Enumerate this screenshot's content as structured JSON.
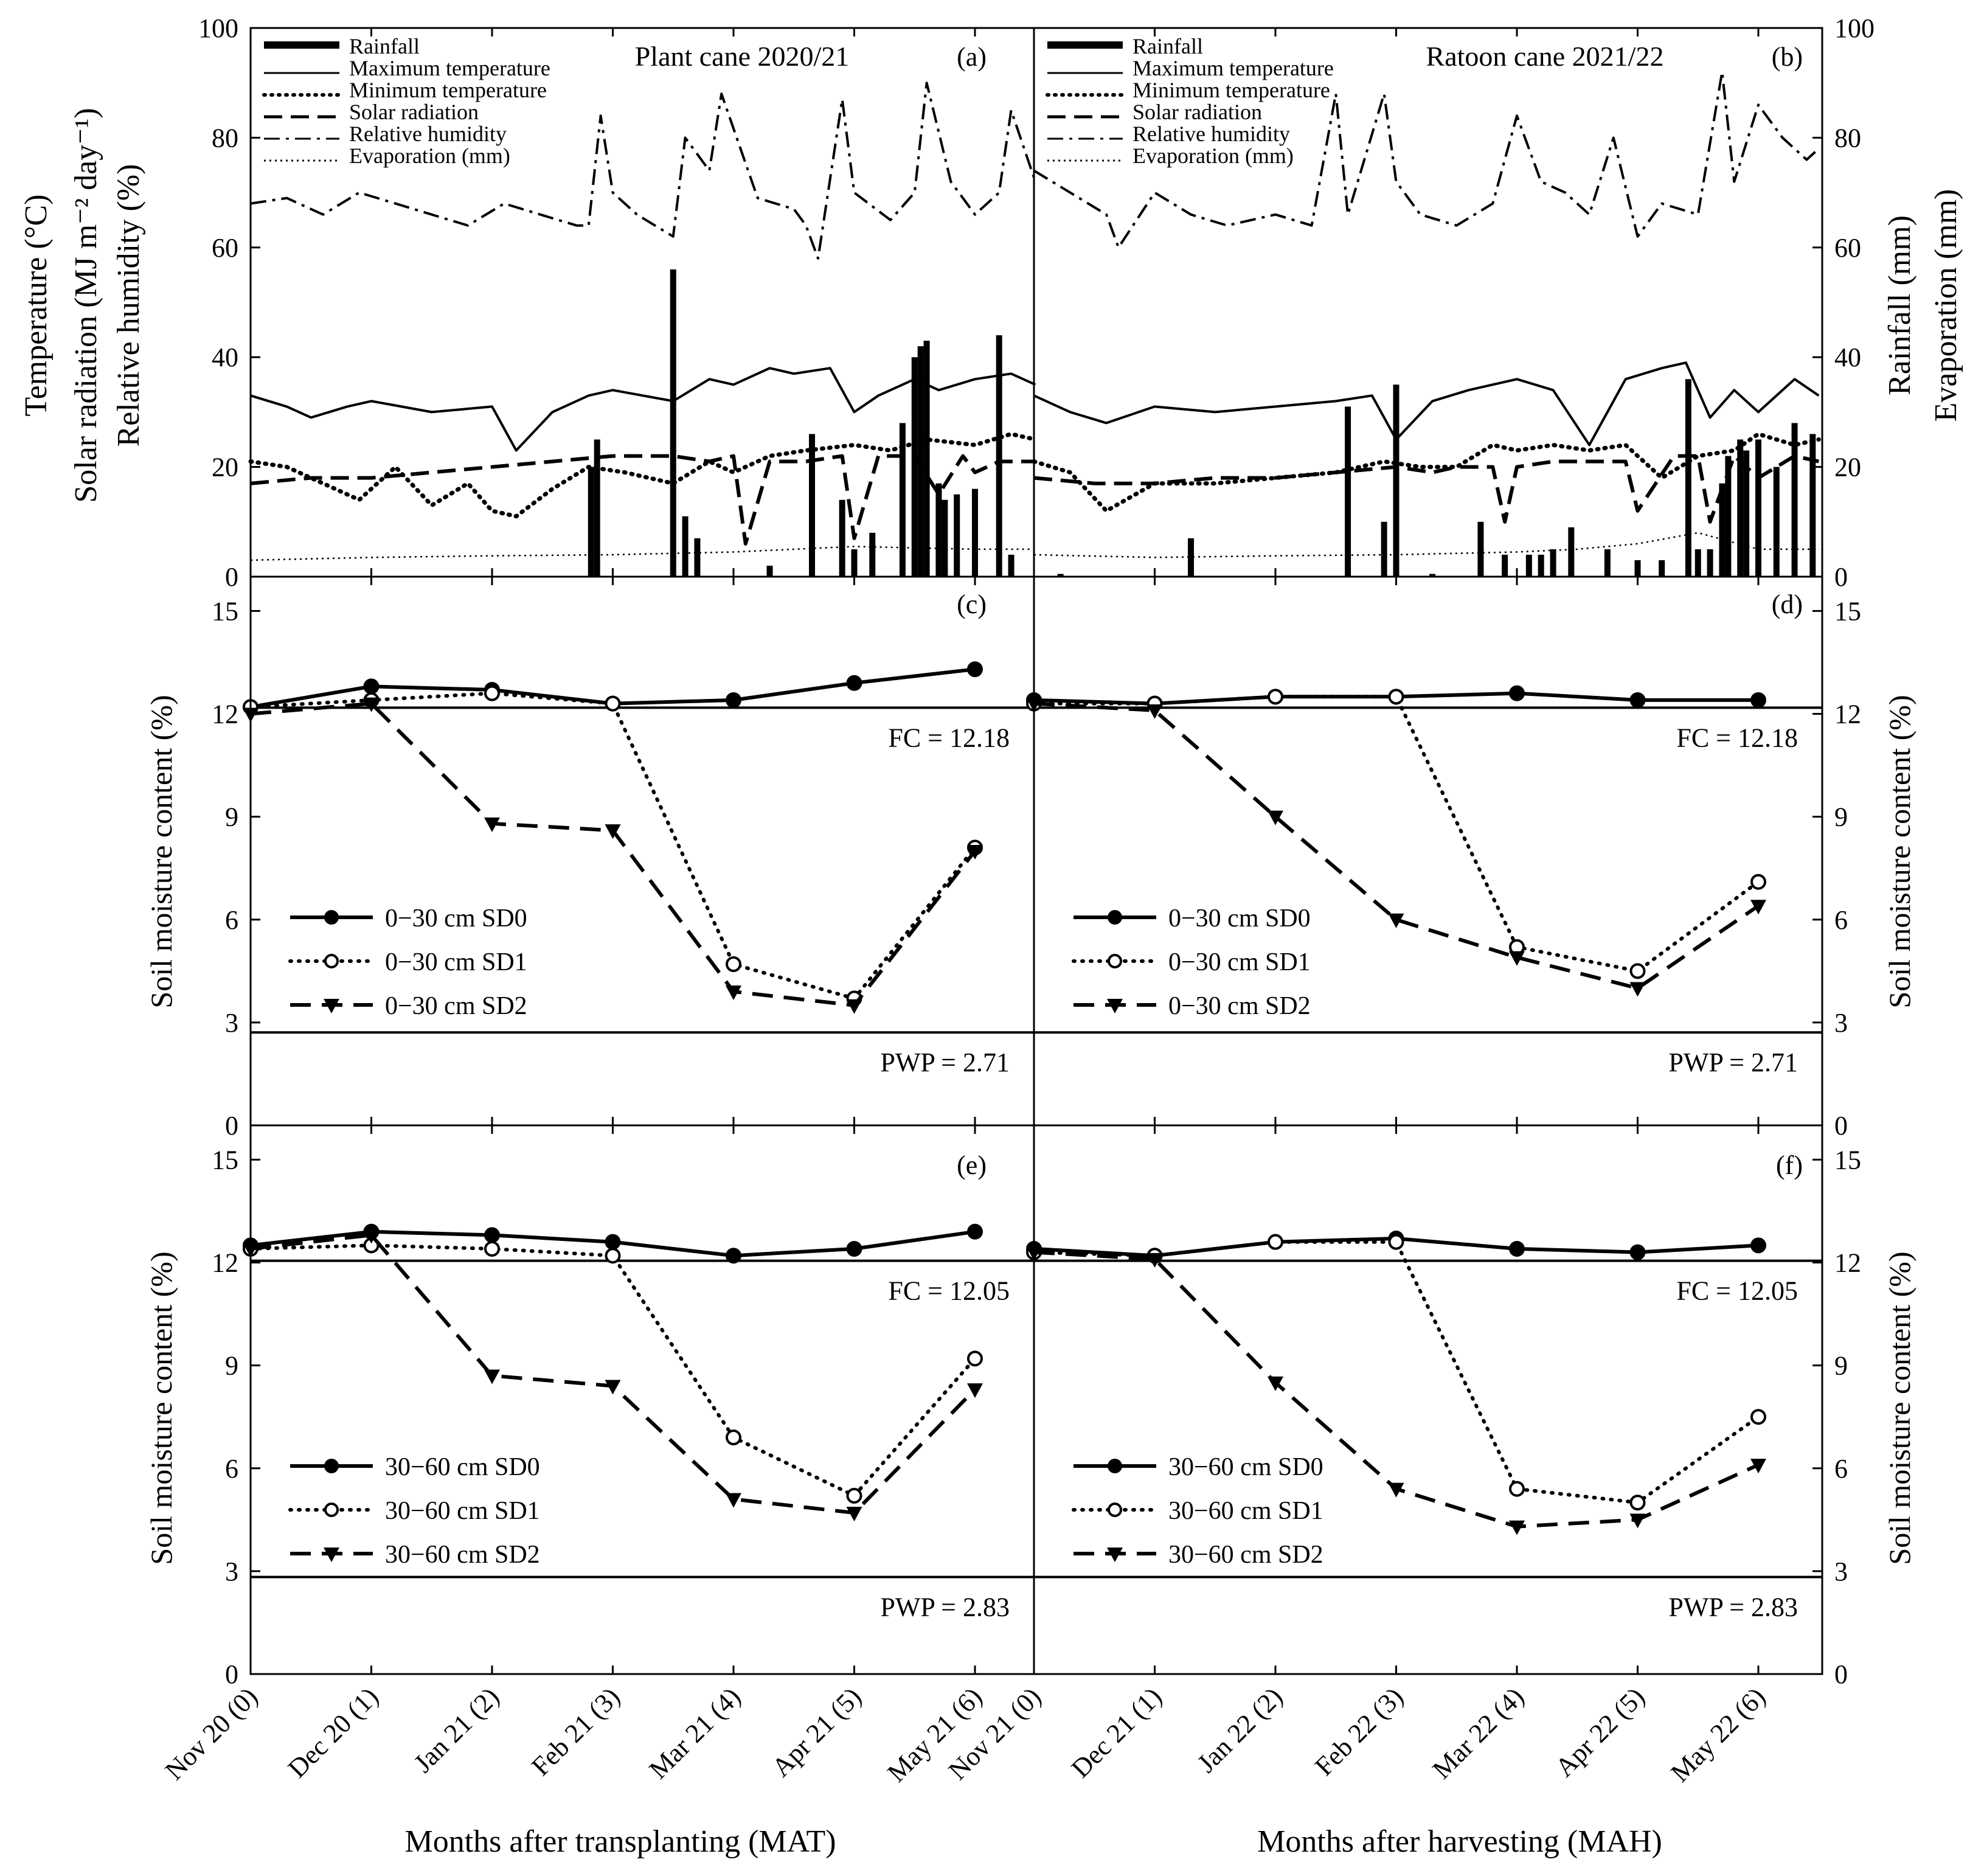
{
  "chart_data": [
    {
      "panel": "a",
      "type": "line",
      "title": "Plant cane 2020/21",
      "panel_label": "(a)",
      "ylabel_left": [
        "Temperature (°C)",
        "Solar radiation (MJ m⁻² day⁻¹)",
        "Relative humidity (%)"
      ],
      "ylim": [
        0,
        100
      ],
      "yticks": [
        "0",
        "20",
        "40",
        "60",
        "80",
        "100"
      ],
      "x_months": 6,
      "legend": [
        "Rainfall",
        "Maximum temperature",
        "Minimum temperature",
        "Solar radiation",
        "Relative humidity",
        "Evaporation (mm)"
      ],
      "series": [
        {
          "name": "Relative humidity",
          "style": "dashdot",
          "x": [
            0,
            0.3,
            0.6,
            0.9,
            1.2,
            1.5,
            1.8,
            2.1,
            2.4,
            2.7,
            2.8,
            2.9,
            3.0,
            3.2,
            3.5,
            3.6,
            3.8,
            3.9,
            4.2,
            4.5,
            4.6,
            4.7,
            4.9,
            5.0,
            5.3,
            5.5,
            5.6,
            5.8,
            6.0,
            6.2,
            6.3,
            6.5
          ],
          "values": [
            68,
            69,
            66,
            70,
            68,
            66,
            64,
            68,
            66,
            64,
            64,
            84,
            70,
            66,
            62,
            80,
            74,
            88,
            69,
            67,
            64,
            58,
            87,
            70,
            65,
            70,
            90,
            72,
            66,
            70,
            85,
            72
          ]
        },
        {
          "name": "Maximum temperature",
          "style": "solid",
          "x": [
            0,
            0.3,
            0.5,
            0.8,
            1.0,
            1.5,
            2.0,
            2.2,
            2.5,
            2.8,
            3.0,
            3.5,
            3.8,
            4.0,
            4.3,
            4.5,
            4.8,
            5.0,
            5.2,
            5.5,
            5.7,
            6.0,
            6.3,
            6.5
          ],
          "values": [
            33,
            31,
            29,
            31,
            32,
            30,
            31,
            23,
            30,
            33,
            34,
            32,
            36,
            35,
            38,
            37,
            38,
            30,
            33,
            36,
            34,
            36,
            37,
            35
          ]
        },
        {
          "name": "Minimum temperature",
          "style": "dotted",
          "x": [
            0,
            0.3,
            0.6,
            0.9,
            1.2,
            1.5,
            1.8,
            2.0,
            2.2,
            2.5,
            2.8,
            3.1,
            3.5,
            3.8,
            4.0,
            4.3,
            4.6,
            5.0,
            5.3,
            5.6,
            6.0,
            6.3,
            6.5
          ],
          "values": [
            21,
            20,
            17,
            14,
            20,
            13,
            17,
            12,
            11,
            16,
            20,
            19,
            17,
            21,
            19,
            22,
            23,
            24,
            23,
            25,
            24,
            26,
            25
          ]
        },
        {
          "name": "Solar radiation",
          "style": "dashed",
          "x": [
            0,
            0.5,
            1.0,
            1.5,
            2.0,
            2.5,
            3.0,
            3.5,
            3.8,
            4.0,
            4.1,
            4.3,
            4.6,
            4.9,
            5.0,
            5.2,
            5.5,
            5.7,
            5.9,
            6.0,
            6.2,
            6.5
          ],
          "values": [
            17,
            18,
            18,
            19,
            20,
            21,
            22,
            22,
            21,
            22,
            6,
            21,
            21,
            22,
            7,
            22,
            22,
            15,
            22,
            19,
            21,
            21
          ]
        },
        {
          "name": "Evaporation (mm)",
          "style": "dotted-thin",
          "x": [
            0,
            1,
            2,
            3,
            4,
            4.5,
            5,
            6,
            6.5
          ],
          "values": [
            3,
            3.5,
            3.8,
            4,
            4.5,
            5,
            5.5,
            5,
            5
          ]
        },
        {
          "name": "Rainfall",
          "style": "bar",
          "x": [
            2.82,
            2.87,
            3.5,
            3.6,
            3.7,
            4.3,
            4.65,
            4.9,
            5.0,
            5.15,
            5.4,
            5.5,
            5.55,
            5.6,
            5.7,
            5.75,
            5.85,
            6.0,
            6.2,
            6.3
          ],
          "values": [
            20,
            25,
            56,
            11,
            7,
            2,
            26,
            14,
            5,
            8,
            28,
            40,
            42,
            43,
            17,
            14,
            15,
            16,
            44,
            4
          ]
        }
      ]
    },
    {
      "panel": "b",
      "type": "line",
      "title": "Ratoon cane 2021/22",
      "panel_label": "(b)",
      "ylabel_right": [
        "Rainfall (mm)",
        "Evaporation (mm)"
      ],
      "ylim": [
        0,
        100
      ],
      "yticks": [
        "0",
        "20",
        "40",
        "60",
        "80",
        "100"
      ],
      "x_months": 6,
      "legend": [
        "Rainfall",
        "Maximum temperature",
        "Minimum temperature",
        "Solar radiation",
        "Relative humidity",
        "Evaporation (mm)"
      ],
      "series": [
        {
          "name": "Relative humidity",
          "style": "dashdot",
          "x": [
            0,
            0.3,
            0.6,
            0.7,
            1.0,
            1.3,
            1.6,
            2.0,
            2.3,
            2.5,
            2.6,
            2.9,
            3.0,
            3.2,
            3.5,
            3.8,
            4.0,
            4.2,
            4.4,
            4.6,
            4.8,
            5.0,
            5.2,
            5.5,
            5.7,
            5.8,
            6.0,
            6.2,
            6.4,
            6.5
          ],
          "values": [
            74,
            70,
            66,
            60,
            70,
            66,
            64,
            66,
            64,
            88,
            66,
            88,
            72,
            66,
            64,
            68,
            84,
            72,
            70,
            66,
            80,
            62,
            68,
            66,
            92,
            72,
            86,
            80,
            76,
            78
          ]
        },
        {
          "name": "Maximum temperature",
          "style": "solid",
          "x": [
            0,
            0.3,
            0.6,
            1.0,
            1.5,
            2.0,
            2.5,
            2.8,
            3.0,
            3.3,
            3.6,
            4.0,
            4.3,
            4.6,
            4.9,
            5.2,
            5.4,
            5.6,
            5.8,
            6.0,
            6.3,
            6.5
          ],
          "values": [
            33,
            30,
            28,
            31,
            30,
            31,
            32,
            33,
            25,
            32,
            34,
            36,
            34,
            24,
            36,
            38,
            39,
            29,
            34,
            30,
            36,
            33
          ]
        },
        {
          "name": "Minimum temperature",
          "style": "dotted",
          "x": [
            0,
            0.3,
            0.6,
            1.0,
            1.5,
            2.0,
            2.5,
            2.9,
            3.2,
            3.5,
            3.8,
            4.0,
            4.3,
            4.6,
            4.9,
            5.2,
            5.5,
            5.8,
            6.0,
            6.3,
            6.5
          ],
          "values": [
            21,
            19,
            12,
            17,
            17,
            18,
            19,
            21,
            20,
            20,
            24,
            23,
            24,
            23,
            24,
            18,
            22,
            23,
            26,
            24,
            25
          ]
        },
        {
          "name": "Solar radiation",
          "style": "dashed",
          "x": [
            0,
            0.5,
            1.0,
            1.5,
            2.0,
            2.5,
            3.0,
            3.3,
            3.5,
            3.8,
            3.9,
            4.0,
            4.3,
            4.6,
            4.9,
            5.0,
            5.3,
            5.5,
            5.6,
            5.8,
            6.0,
            6.3,
            6.5
          ],
          "values": [
            18,
            17,
            17,
            18,
            18,
            19,
            20,
            19,
            20,
            20,
            10,
            20,
            21,
            21,
            21,
            12,
            22,
            22,
            10,
            22,
            18,
            22,
            21
          ]
        },
        {
          "name": "Evaporation (mm)",
          "style": "dotted-thin",
          "x": [
            0,
            1,
            2,
            3,
            4,
            4.5,
            5,
            5.5,
            6,
            6.5
          ],
          "values": [
            4,
            3.5,
            3.8,
            4,
            4.5,
            5,
            6,
            8,
            5,
            5
          ]
        },
        {
          "name": "Rainfall",
          "style": "bar",
          "x": [
            0.22,
            1.3,
            2.6,
            2.9,
            3.0,
            3.3,
            3.7,
            3.9,
            4.1,
            4.2,
            4.3,
            4.45,
            4.75,
            5.0,
            5.2,
            5.42,
            5.5,
            5.6,
            5.7,
            5.75,
            5.85,
            5.9,
            6.0,
            6.15,
            6.3,
            6.45
          ],
          "values": [
            0.5,
            7,
            31,
            10,
            35,
            0.5,
            10,
            4,
            4,
            4,
            5,
            9,
            5,
            3,
            3,
            36,
            5,
            5,
            17,
            22,
            25,
            23,
            25,
            20,
            28,
            26
          ]
        }
      ]
    },
    {
      "panel": "c",
      "type": "line",
      "panel_label": "(c)",
      "ylabel_left": "Soil moisture content (%)",
      "ylim": [
        0,
        16
      ],
      "yticks": [
        "0",
        "3",
        "6",
        "9",
        "12",
        "15"
      ],
      "reference_lines": [
        {
          "label": "FC = 12.18",
          "value": 12.18
        },
        {
          "label": "PWP = 2.71",
          "value": 2.71
        }
      ],
      "series": [
        {
          "name": "0−30 cm SD0",
          "style": "solid",
          "marker": "filled-circle",
          "x": [
            0,
            1,
            2,
            3,
            4,
            5,
            6
          ],
          "values": [
            12.2,
            12.8,
            12.7,
            12.3,
            12.4,
            12.9,
            13.3
          ]
        },
        {
          "name": "0−30 cm SD1",
          "style": "dotted",
          "marker": "open-circle",
          "x": [
            0,
            1,
            2,
            3,
            4,
            5,
            6
          ],
          "values": [
            12.2,
            12.4,
            12.6,
            12.3,
            4.7,
            3.7,
            8.1
          ]
        },
        {
          "name": "0−30 cm SD2",
          "style": "dashed",
          "marker": "triangle-down",
          "x": [
            0,
            1,
            2,
            3,
            4,
            5,
            6
          ],
          "values": [
            12.0,
            12.3,
            8.8,
            8.6,
            3.9,
            3.5,
            8.0
          ]
        }
      ]
    },
    {
      "panel": "d",
      "type": "line",
      "panel_label": "(d)",
      "ylabel_right": "Soil moisture content (%)",
      "ylim": [
        0,
        16
      ],
      "yticks": [
        "0",
        "3",
        "6",
        "9",
        "12",
        "15"
      ],
      "reference_lines": [
        {
          "label": "FC = 12.18",
          "value": 12.18
        },
        {
          "label": "PWP = 2.71",
          "value": 2.71
        }
      ],
      "series": [
        {
          "name": "0−30 cm SD0",
          "style": "solid",
          "marker": "filled-circle",
          "x": [
            0,
            1,
            2,
            3,
            4,
            5,
            6
          ],
          "values": [
            12.4,
            12.3,
            12.5,
            12.5,
            12.6,
            12.4,
            12.4
          ]
        },
        {
          "name": "0−30 cm SD1",
          "style": "dotted",
          "marker": "open-circle",
          "x": [
            0,
            1,
            2,
            3,
            4,
            5,
            6
          ],
          "values": [
            12.3,
            12.3,
            12.5,
            12.5,
            5.2,
            4.5,
            7.1
          ]
        },
        {
          "name": "0−30 cm SD2",
          "style": "dashed",
          "marker": "triangle-down",
          "x": [
            0,
            1,
            2,
            3,
            4,
            5,
            6
          ],
          "values": [
            12.3,
            12.1,
            9.0,
            6.0,
            4.9,
            4.0,
            6.4
          ]
        }
      ]
    },
    {
      "panel": "e",
      "type": "line",
      "panel_label": "(e)",
      "ylabel_left": "Soil moisture content (%)",
      "ylim": [
        0,
        16
      ],
      "yticks": [
        "0",
        "3",
        "6",
        "9",
        "12",
        "15"
      ],
      "reference_lines": [
        {
          "label": "FC = 12.05",
          "value": 12.05
        },
        {
          "label": "PWP = 2.83",
          "value": 2.83
        }
      ],
      "xticks": [
        "Nov 20 (0)",
        "Dec 20 (1)",
        "Jan 21 (2)",
        "Feb 21 (3)",
        "Mar 21 (4)",
        "Apr 21 (5)",
        "May 21 (6)"
      ],
      "xlabel": "Months after transplanting (MAT)",
      "series": [
        {
          "name": "30−60 cm SD0",
          "style": "solid",
          "marker": "filled-circle",
          "x": [
            0,
            1,
            2,
            3,
            4,
            5,
            6
          ],
          "values": [
            12.5,
            12.9,
            12.8,
            12.6,
            12.2,
            12.4,
            12.9
          ]
        },
        {
          "name": "30−60 cm SD1",
          "style": "dotted",
          "marker": "open-circle",
          "x": [
            0,
            1,
            2,
            3,
            4,
            5,
            6
          ],
          "values": [
            12.4,
            12.5,
            12.4,
            12.2,
            6.9,
            5.2,
            9.2
          ]
        },
        {
          "name": "30−60 cm SD2",
          "style": "dashed",
          "marker": "triangle-down",
          "x": [
            0,
            1,
            2,
            3,
            4,
            5,
            6
          ],
          "values": [
            12.4,
            12.8,
            8.7,
            8.4,
            5.1,
            4.7,
            8.3
          ]
        }
      ]
    },
    {
      "panel": "f",
      "type": "line",
      "panel_label": "(f)",
      "ylabel_right": "Soil moisture content (%)",
      "ylim": [
        0,
        16
      ],
      "yticks": [
        "0",
        "3",
        "6",
        "9",
        "12",
        "15"
      ],
      "reference_lines": [
        {
          "label": "FC = 12.05",
          "value": 12.05
        },
        {
          "label": "PWP = 2.83",
          "value": 2.83
        }
      ],
      "xticks": [
        "Nov 21 (0)",
        "Dec 21 (1)",
        "Jan 22 (2)",
        "Feb 22 (3)",
        "Mar 22 (4)",
        "Apr 22 (5)",
        "May 22 (6)"
      ],
      "xlabel": "Months after harvesting (MAH)",
      "series": [
        {
          "name": "30−60 cm SD0",
          "style": "solid",
          "marker": "filled-circle",
          "x": [
            0,
            1,
            2,
            3,
            4,
            5,
            6
          ],
          "values": [
            12.4,
            12.2,
            12.6,
            12.7,
            12.4,
            12.3,
            12.5
          ]
        },
        {
          "name": "30−60 cm SD1",
          "style": "dotted",
          "marker": "open-circle",
          "x": [
            0,
            1,
            2,
            3,
            4,
            5,
            6
          ],
          "values": [
            12.3,
            12.2,
            12.6,
            12.6,
            5.4,
            5.0,
            7.5
          ]
        },
        {
          "name": "30−60 cm SD2",
          "style": "dashed",
          "marker": "triangle-down",
          "x": [
            0,
            1,
            2,
            3,
            4,
            5,
            6
          ],
          "values": [
            12.3,
            12.1,
            8.5,
            5.4,
            4.3,
            4.5,
            6.1
          ]
        }
      ]
    }
  ]
}
